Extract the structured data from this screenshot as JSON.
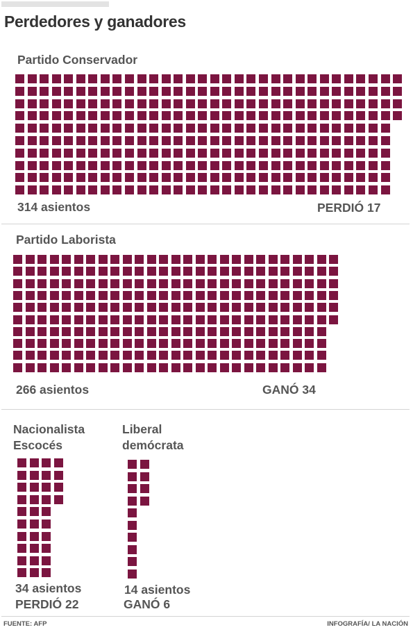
{
  "title": "Perdedores y ganadores",
  "colors": {
    "seat": "#7b1540",
    "text": "#555555"
  },
  "chart_data": {
    "type": "waffle",
    "unit": "asientos",
    "parties": [
      {
        "name": "Partido Conservador",
        "seats": 314,
        "seats_label": "314 asientos",
        "change": -17,
        "change_label": "PERDIÓ 17"
      },
      {
        "name": "Partido Laborista",
        "seats": 266,
        "seats_label": "266 asientos",
        "change": 34,
        "change_label": "GANÓ 34"
      },
      {
        "name": "Nacionalista Escocés",
        "name_lines": [
          "Nacionalista",
          "Escocés"
        ],
        "seats": 34,
        "seats_label": "34 asientos",
        "change": -22,
        "change_label": "PERDIÓ 22"
      },
      {
        "name": "Liberal demócrata",
        "name_lines": [
          "Liberal",
          "demócrata"
        ],
        "seats": 14,
        "seats_label": "14 asientos",
        "change": 6,
        "change_label": "GANÓ 6"
      }
    ]
  },
  "footer": {
    "source": "FUENTE: AFP",
    "credit": "INFOGRAFÍA/ LA NACIÓN"
  }
}
